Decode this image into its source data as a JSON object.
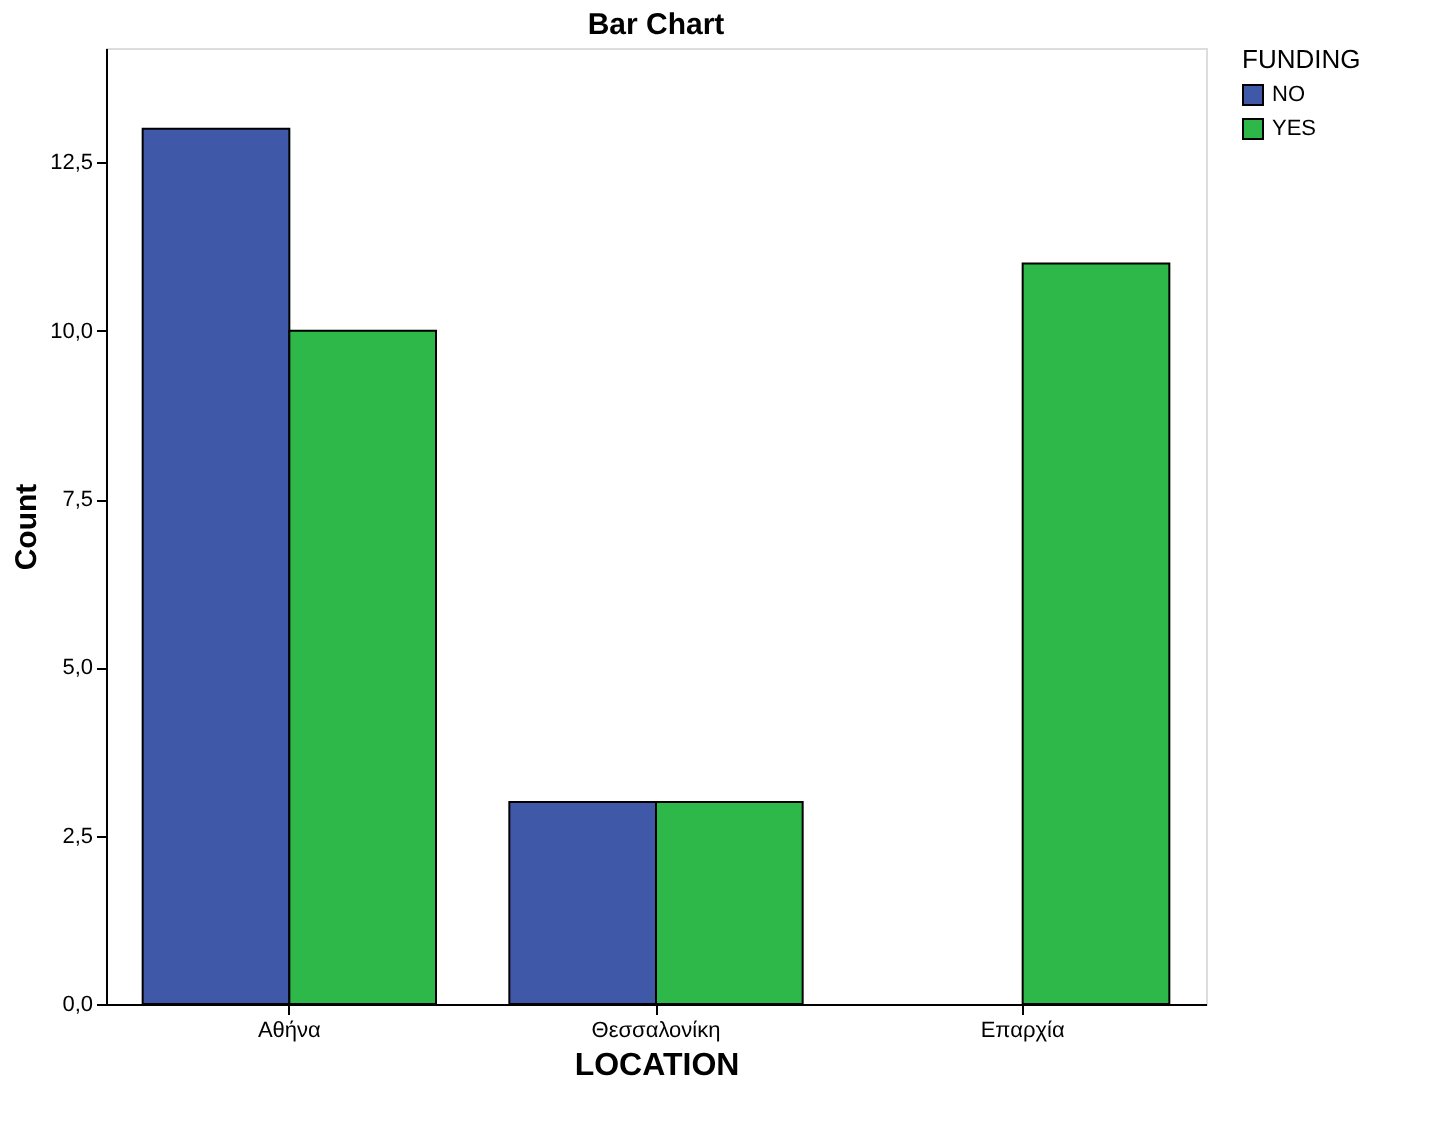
{
  "chart_data": {
    "type": "bar",
    "title": "Bar Chart",
    "xlabel": "LOCATION",
    "ylabel": "Count",
    "legend_title": "FUNDING",
    "categories": [
      "Αθήνα",
      "Θεσσαλονίκη",
      "Επαρχία"
    ],
    "series": [
      {
        "name": "NO",
        "color": "#3f58a8",
        "values": [
          13,
          3,
          null
        ]
      },
      {
        "name": "YES",
        "color": "#2eb84a",
        "values": [
          10,
          3,
          11
        ]
      }
    ],
    "ylim": [
      0,
      14.2
    ],
    "yticks": [
      {
        "value": 0,
        "label": "0,0"
      },
      {
        "value": 2.5,
        "label": "2,5"
      },
      {
        "value": 5,
        "label": "5,0"
      },
      {
        "value": 7.5,
        "label": "7,5"
      },
      {
        "value": 10,
        "label": "10,0"
      },
      {
        "value": 12.5,
        "label": "12,5"
      }
    ],
    "grid": false,
    "legend": "top right"
  }
}
